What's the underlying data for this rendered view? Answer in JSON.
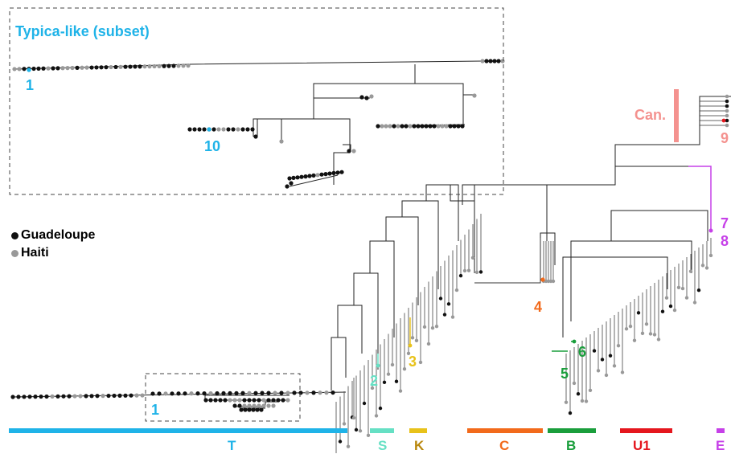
{
  "inset": {
    "title": "Typica-like (subset)"
  },
  "legend": [
    {
      "label": "Guadeloupe",
      "color": "#111111"
    },
    {
      "label": "Haiti",
      "color": "#999999"
    }
  ],
  "markers": {
    "m1_main": "1",
    "m1_inset": "1",
    "m10": "10",
    "m2": "2",
    "m3": "3",
    "m4": "4",
    "m5": "5",
    "m6": "6",
    "m7": "7",
    "m8": "8",
    "m9": "9",
    "can": "Can."
  },
  "clades": [
    {
      "letter": "T",
      "color": "#1fb3e8"
    },
    {
      "letter": "S",
      "color": "#66e0c4"
    },
    {
      "letter": "K",
      "color": "#e8c21a"
    },
    {
      "letter": "C",
      "color": "#f26a1b"
    },
    {
      "letter": "B",
      "color": "#1a9e3c"
    },
    {
      "letter": "U1",
      "color": "#e5161e"
    },
    {
      "letter": "E",
      "color": "#c640e8"
    }
  ],
  "colors": {
    "T": "#1fb3e8",
    "S": "#66e0c4",
    "K": "#e8c21a",
    "C": "#f26a1b",
    "B": "#1a9e3c",
    "U1": "#e5161e",
    "E": "#c640e8",
    "Can": "#f4928f"
  }
}
